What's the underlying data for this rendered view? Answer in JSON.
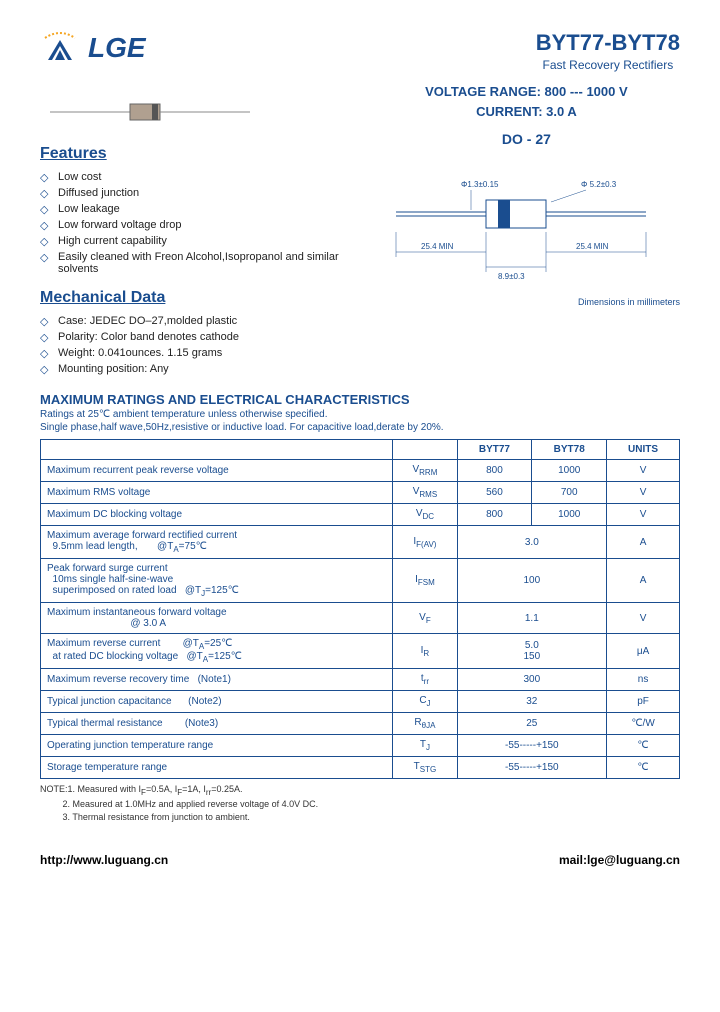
{
  "logo_text": "LGE",
  "part_title": "BYT77-BYT78",
  "subtitle": "Fast Recovery Rectifiers",
  "voltage_line": "VOLTAGE RANGE: 800 --- 1000 V",
  "current_line": "CURRENT: 3.0 A",
  "package": "DO - 27",
  "features_title": "Features",
  "features": [
    "Low cost",
    "Diffused junction",
    "Low leakage",
    "Low forward voltage drop",
    "High current capability",
    "Easily cleaned with Freon Alcohol,Isopropanol and similar solvents"
  ],
  "mech_title": "Mechanical Data",
  "mech": [
    "Case: JEDEC DO–27,molded plastic",
    "Polarity: Color band denotes cathode",
    "Weight: 0.041ounces. 1.15 grams",
    "Mounting position: Any"
  ],
  "dim_labels": {
    "d1": "Φ1.3±0.15",
    "d2": "Φ 5.2±0.3",
    "l1": "25.4 MIN",
    "l2": "8.9±0.3",
    "l3": "25.4 MIN"
  },
  "dim_note": "Dimensions in millimeters",
  "ratings_title": "MAXIMUM RATINGS AND ELECTRICAL CHARACTERISTICS",
  "ratings_sub1": "Ratings at 25℃ ambient temperature unless otherwise specified.",
  "ratings_sub2": "Single phase,half wave,50Hz,resistive or inductive load. For capacitive load,derate by 20%.",
  "table": {
    "headers": [
      "",
      "",
      "BYT77",
      "BYT78",
      "UNITS"
    ],
    "rows": [
      {
        "param": "Maximum recurrent peak reverse voltage",
        "sym": "V<sub>RRM</sub>",
        "v1": "800",
        "v2": "1000",
        "u": "V"
      },
      {
        "param": "Maximum RMS voltage",
        "sym": "V<sub>RMS</sub>",
        "v1": "560",
        "v2": "700",
        "u": "V"
      },
      {
        "param": "Maximum DC blocking voltage",
        "sym": "V<sub>DC</sub>",
        "v1": "800",
        "v2": "1000",
        "u": "V"
      },
      {
        "param": "Maximum average forward rectified current<br>&nbsp;&nbsp;9.5mm lead length,&nbsp;&nbsp;&nbsp;&nbsp;&nbsp;&nbsp;&nbsp;@T<sub>A</sub>=75℃",
        "sym": "I<sub>F(AV)</sub>",
        "merged": "3.0",
        "u": "A"
      },
      {
        "param": "Peak forward surge current<br>&nbsp;&nbsp;10ms single half-sine-wave<br>&nbsp;&nbsp;superimposed on rated load&nbsp;&nbsp;&nbsp;@T<sub>J</sub>=125℃",
        "sym": "I<sub>FSM</sub>",
        "merged": "100",
        "u": "A"
      },
      {
        "param": "Maximum instantaneous forward voltage<br>&nbsp;&nbsp;&nbsp;&nbsp;&nbsp;&nbsp;&nbsp;&nbsp;&nbsp;&nbsp;&nbsp;&nbsp;&nbsp;&nbsp;&nbsp;&nbsp;&nbsp;&nbsp;&nbsp;&nbsp;&nbsp;&nbsp;&nbsp;&nbsp;&nbsp;&nbsp;&nbsp;&nbsp;&nbsp;&nbsp;@ 3.0 A",
        "sym": "V<sub>F</sub>",
        "merged": "1.1",
        "u": "V"
      },
      {
        "param": "Maximum reverse current&nbsp;&nbsp;&nbsp;&nbsp;&nbsp;&nbsp;&nbsp;&nbsp;@T<sub>A</sub>=25℃<br>&nbsp;&nbsp;at rated DC blocking voltage&nbsp;&nbsp;&nbsp;@T<sub>A</sub>=125℃",
        "sym": "I<sub>R</sub>",
        "merged": "5.0<br>150",
        "u": "μA"
      },
      {
        "param": "Maximum reverse recovery time&nbsp;&nbsp;&nbsp;(Note1)",
        "sym": "t<sub>rr</sub>",
        "merged": "300",
        "u": "ns"
      },
      {
        "param": "Typical junction capacitance&nbsp;&nbsp;&nbsp;&nbsp;&nbsp;&nbsp;(Note2)",
        "sym": "C<sub>J</sub>",
        "merged": "32",
        "u": "pF"
      },
      {
        "param": "Typical thermal resistance&nbsp;&nbsp;&nbsp;&nbsp;&nbsp;&nbsp;&nbsp;&nbsp;(Note3)",
        "sym": "R<sub>θJA</sub>",
        "merged": "25",
        "u": "℃/W"
      },
      {
        "param": "Operating junction temperature range",
        "sym": "T<sub>J</sub>",
        "merged": "-55-----+150",
        "u": "℃"
      },
      {
        "param": "Storage temperature range",
        "sym": "T<sub>STG</sub>",
        "merged": "-55-----+150",
        "u": "℃"
      }
    ]
  },
  "notes": [
    "NOTE:1. Measured with I<sub>F</sub>=0.5A, I<sub>F</sub>=1A, I<sub>rr</sub>=0.25A.",
    "&nbsp;&nbsp;&nbsp;&nbsp;&nbsp;&nbsp;&nbsp;&nbsp;&nbsp;2. Measured at 1.0MHz and applied reverse voltage of 4.0V DC.",
    "&nbsp;&nbsp;&nbsp;&nbsp;&nbsp;&nbsp;&nbsp;&nbsp;&nbsp;3. Thermal resistance from junction to ambient."
  ],
  "footer_url": "http://www.luguang.cn",
  "footer_mail": "mail:lge@luguang.cn"
}
